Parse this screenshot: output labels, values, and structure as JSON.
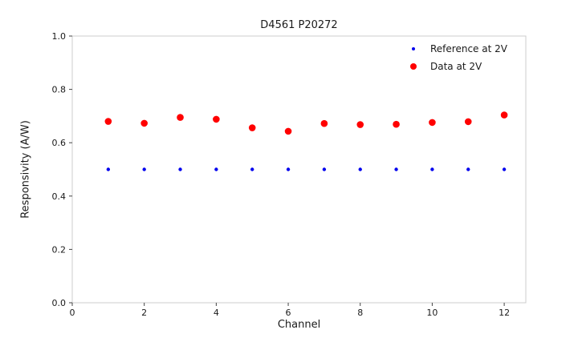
{
  "figure": {
    "title": "D4561 P20272",
    "xlabel": "Channel",
    "ylabel": "Responsivity (A/W)"
  },
  "chart_data": {
    "type": "scatter",
    "title": "D4561 P20272",
    "xlabel": "Channel",
    "ylabel": "Responsivity (A/W)",
    "x": [
      1,
      2,
      3,
      4,
      5,
      6,
      7,
      8,
      9,
      10,
      11,
      12
    ],
    "series": [
      {
        "name": "Reference at 2V",
        "color": "#0000ee",
        "marker_radius": 2.2,
        "values": [
          0.5,
          0.5,
          0.5,
          0.5,
          0.5,
          0.5,
          0.5,
          0.5,
          0.5,
          0.5,
          0.5,
          0.5
        ]
      },
      {
        "name": "Data at 2V",
        "color": "#ff0000",
        "marker_radius": 4.3,
        "values": [
          0.68,
          0.673,
          0.695,
          0.688,
          0.656,
          0.643,
          0.672,
          0.668,
          0.669,
          0.676,
          0.679,
          0.704
        ]
      }
    ],
    "xlim": [
      0,
      12.6
    ],
    "ylim": [
      0,
      1.0
    ],
    "xticks": [
      0,
      2,
      4,
      6,
      8,
      10,
      12
    ],
    "yticks": [
      0.0,
      0.2,
      0.4,
      0.6,
      0.8,
      1.0
    ],
    "grid": false,
    "legend_position": "upper right",
    "frame_color": "#cccccc",
    "tick_color": "#444444",
    "tick_label_color": "#1a1a1a"
  }
}
